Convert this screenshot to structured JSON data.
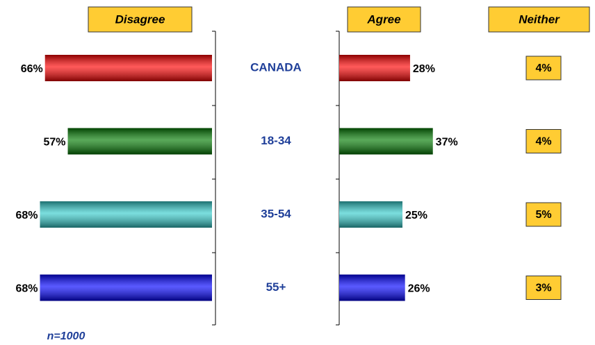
{
  "chart_data": {
    "type": "bar",
    "categories": [
      "CANADA",
      "18-34",
      "35-54",
      "55+"
    ],
    "colors": [
      "#ff0000",
      "#007a00",
      "#33cccc",
      "#0000ff"
    ],
    "series": [
      {
        "name": "Disagree",
        "values": [
          66,
          57,
          68,
          68
        ],
        "value_labels": [
          "66%",
          "57%",
          "68%",
          "68%"
        ]
      },
      {
        "name": "Agree",
        "values": [
          28,
          37,
          25,
          26
        ],
        "value_labels": [
          "28%",
          "37%",
          "25%",
          "26%"
        ]
      },
      {
        "name": "Neither",
        "color": "#ffcc33",
        "values": [
          4,
          4,
          5,
          3
        ],
        "value_labels": [
          "4%",
          "4%",
          "5%",
          "3%"
        ]
      }
    ],
    "note": "n=1000"
  }
}
